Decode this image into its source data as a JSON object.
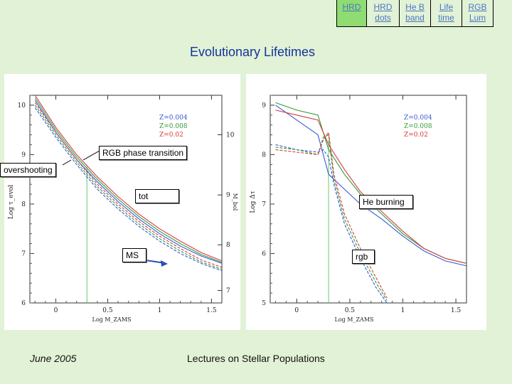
{
  "nav": {
    "items": [
      {
        "label": "HRD",
        "label2": ""
      },
      {
        "label": "HRD",
        "label2": "dots"
      },
      {
        "label": "He B",
        "label2": "band"
      },
      {
        "label": "Life",
        "label2": "time"
      },
      {
        "label": "RGB",
        "label2": "Lum"
      }
    ]
  },
  "slide": {
    "title": "Evolutionary Lifetimes",
    "footer_date": "June 2005",
    "footer_title": "Lectures on Stellar Populations"
  },
  "callouts": {
    "rgb_phase": "RGB phase transition",
    "overshooting": "overshooting",
    "tot": "tot",
    "ms": "MS",
    "he_burning": "He burning",
    "rgb": "rgb"
  },
  "colors": {
    "z004": "#3b57d6",
    "z008": "#2f9b3a",
    "z02": "#d43b3b",
    "transition": "#7fd47f"
  },
  "chart_data": [
    {
      "type": "line",
      "xlabel": "Log M_ZAMS",
      "ylabel": "Log τ_evol",
      "right_ylabel": "M_bol",
      "xlim": [
        -0.25,
        1.6
      ],
      "ylim": [
        6.0,
        10.2
      ],
      "x_ticks": [
        "0",
        "0.5",
        "1",
        "1.5"
      ],
      "y_ticks": [
        "6",
        "7",
        "8",
        "9",
        "10"
      ],
      "right_y_ticks": [
        "10",
        "9",
        "8",
        "7"
      ],
      "legend": [
        "Z=0.004",
        "Z=0.008",
        "Z=0.02"
      ],
      "vline_x": 0.3,
      "series": [
        {
          "name": "Z=0.004",
          "curve": "tot",
          "x": [
            -0.2,
            0.0,
            0.2,
            0.4,
            0.6,
            0.8,
            1.0,
            1.2,
            1.4,
            1.6
          ],
          "y": [
            10.1,
            9.45,
            8.9,
            8.45,
            8.05,
            7.7,
            7.4,
            7.15,
            6.95,
            6.8
          ]
        },
        {
          "name": "Z=0.008",
          "curve": "tot",
          "x": [
            -0.2,
            0.0,
            0.2,
            0.4,
            0.6,
            0.8,
            1.0,
            1.2,
            1.4,
            1.6
          ],
          "y": [
            10.15,
            9.5,
            8.95,
            8.5,
            8.1,
            7.75,
            7.45,
            7.2,
            6.98,
            6.82
          ]
        },
        {
          "name": "Z=0.02",
          "curve": "tot",
          "x": [
            -0.2,
            0.0,
            0.2,
            0.4,
            0.6,
            0.8,
            1.0,
            1.2,
            1.4,
            1.6
          ],
          "y": [
            10.2,
            9.55,
            9.0,
            8.55,
            8.15,
            7.8,
            7.5,
            7.25,
            7.02,
            6.85
          ]
        },
        {
          "name": "Z=0.004",
          "curve": "MS",
          "x": [
            -0.2,
            0.0,
            0.2,
            0.4,
            0.6,
            0.8,
            1.0,
            1.2,
            1.4,
            1.6
          ],
          "y": [
            9.95,
            9.35,
            8.8,
            8.3,
            7.9,
            7.55,
            7.25,
            7.0,
            6.8,
            6.65
          ]
        },
        {
          "name": "Z=0.008",
          "curve": "MS",
          "x": [
            -0.2,
            0.0,
            0.2,
            0.4,
            0.6,
            0.8,
            1.0,
            1.2,
            1.4,
            1.6
          ],
          "y": [
            10.0,
            9.4,
            8.85,
            8.35,
            7.95,
            7.6,
            7.3,
            7.05,
            6.83,
            6.68
          ]
        },
        {
          "name": "Z=0.02",
          "curve": "MS",
          "x": [
            -0.2,
            0.0,
            0.2,
            0.4,
            0.6,
            0.8,
            1.0,
            1.2,
            1.4,
            1.6
          ],
          "y": [
            10.05,
            9.45,
            8.9,
            8.4,
            8.0,
            7.65,
            7.35,
            7.1,
            6.87,
            6.72
          ]
        }
      ]
    },
    {
      "type": "line",
      "xlabel": "Log M_ZAMS",
      "ylabel": "Log Δτ",
      "xlim": [
        -0.25,
        1.6
      ],
      "ylim": [
        5.0,
        9.2
      ],
      "x_ticks": [
        "0",
        "0.5",
        "1",
        "1.5"
      ],
      "y_ticks": [
        "5",
        "6",
        "7",
        "8",
        "9"
      ],
      "legend": [
        "Z=0.004",
        "Z=0.008",
        "Z=0.02"
      ],
      "vline_x": 0.3,
      "series": [
        {
          "name": "Z=0.004",
          "curve": "He burning",
          "x": [
            -0.2,
            0.0,
            0.2,
            0.3,
            0.45,
            0.6,
            0.8,
            1.0,
            1.2,
            1.4,
            1.6
          ],
          "y": [
            9.0,
            8.7,
            8.4,
            7.6,
            7.3,
            7.0,
            6.7,
            6.35,
            6.05,
            5.85,
            5.75
          ]
        },
        {
          "name": "Z=0.008",
          "curve": "He burning",
          "x": [
            -0.2,
            0.0,
            0.2,
            0.3,
            0.45,
            0.6,
            0.8,
            1.0,
            1.2,
            1.4,
            1.6
          ],
          "y": [
            9.05,
            8.9,
            8.8,
            8.1,
            7.6,
            7.2,
            6.8,
            6.4,
            6.1,
            5.9,
            5.8
          ]
        },
        {
          "name": "Z=0.02",
          "curve": "He burning",
          "x": [
            -0.2,
            0.0,
            0.2,
            0.3,
            0.45,
            0.6,
            0.8,
            1.0,
            1.2,
            1.4,
            1.6
          ],
          "y": [
            8.9,
            8.8,
            8.7,
            8.2,
            7.7,
            7.25,
            6.85,
            6.45,
            6.1,
            5.9,
            5.8
          ]
        },
        {
          "name": "Z=0.004",
          "curve": "rgb",
          "x": [
            -0.2,
            0.0,
            0.2,
            0.25,
            0.3,
            0.35,
            0.45,
            0.6,
            0.75,
            0.85
          ],
          "y": [
            8.2,
            8.1,
            8.05,
            8.1,
            7.95,
            7.4,
            6.6,
            5.9,
            5.3,
            5.0
          ]
        },
        {
          "name": "Z=0.008",
          "curve": "rgb",
          "x": [
            -0.2,
            0.0,
            0.2,
            0.25,
            0.3,
            0.35,
            0.45,
            0.6,
            0.75,
            0.85
          ],
          "y": [
            8.15,
            8.1,
            8.0,
            8.35,
            8.4,
            7.5,
            6.7,
            6.0,
            5.4,
            5.05
          ]
        },
        {
          "name": "Z=0.02",
          "curve": "rgb",
          "x": [
            -0.2,
            0.0,
            0.2,
            0.25,
            0.3,
            0.35,
            0.45,
            0.6,
            0.75,
            0.85
          ],
          "y": [
            8.1,
            8.05,
            8.0,
            8.3,
            8.45,
            7.6,
            6.8,
            6.1,
            5.5,
            5.1
          ]
        }
      ]
    }
  ]
}
